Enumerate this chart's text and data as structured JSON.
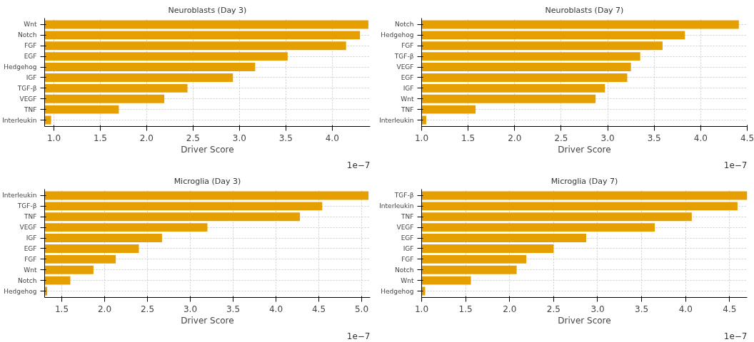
{
  "chart_data": [
    {
      "type": "bar",
      "orientation": "horizontal",
      "title": "Neuroblasts (Day 3)",
      "xlabel": "Driver Score",
      "annotations": [
        "1e−7"
      ],
      "grid": true,
      "color": "#e69f00",
      "categories": [
        "Wnt",
        "Notch",
        "FGF",
        "EGF",
        "Hedgehog",
        "IGF",
        "TGF-β",
        "VEGF",
        "TNF",
        "Interleukin"
      ],
      "values": [
        4.39,
        4.3,
        4.15,
        3.52,
        3.17,
        2.93,
        2.44,
        2.19,
        1.7,
        0.97
      ],
      "xlim": [
        0.9,
        4.41
      ],
      "xticks": [
        {
          "value": 1.0,
          "label": "1.0"
        },
        {
          "value": 1.5,
          "label": "1.5"
        },
        {
          "value": 2.0,
          "label": "2.0"
        },
        {
          "value": 2.5,
          "label": "2.5"
        },
        {
          "value": 3.0,
          "label": "3.0"
        },
        {
          "value": 3.5,
          "label": "3.5"
        },
        {
          "value": 4.0,
          "label": "4.0"
        }
      ]
    },
    {
      "type": "bar",
      "orientation": "horizontal",
      "title": "Neuroblasts (Day 7)",
      "xlabel": "Driver Score",
      "annotations": [
        "1e−7"
      ],
      "grid": true,
      "color": "#e69f00",
      "categories": [
        "Notch",
        "Hedgehog",
        "FGF",
        "TGF-β",
        "VEGF",
        "EGF",
        "IGF",
        "Wnt",
        "TNF",
        "Interleukin"
      ],
      "values": [
        4.41,
        3.83,
        3.59,
        3.35,
        3.25,
        3.21,
        2.97,
        2.87,
        1.58,
        1.05
      ],
      "xlim": [
        1.0,
        4.5
      ],
      "xticks": [
        {
          "value": 1.0,
          "label": "1.0"
        },
        {
          "value": 1.5,
          "label": "1.5"
        },
        {
          "value": 2.0,
          "label": "2.0"
        },
        {
          "value": 2.5,
          "label": "2.5"
        },
        {
          "value": 3.0,
          "label": "3.0"
        },
        {
          "value": 3.5,
          "label": "3.5"
        },
        {
          "value": 4.0,
          "label": "4.0"
        },
        {
          "value": 4.5,
          "label": "4.5"
        }
      ]
    },
    {
      "type": "bar",
      "orientation": "horizontal",
      "title": "Microglia (Day 3)",
      "xlabel": "Driver Score",
      "annotations": [
        "1e−7"
      ],
      "grid": true,
      "color": "#e69f00",
      "categories": [
        "Interleukin",
        "TGF-β",
        "TNF",
        "VEGF",
        "IGF",
        "EGF",
        "FGF",
        "Wnt",
        "Notch",
        "Hedgehog"
      ],
      "values": [
        5.08,
        4.54,
        4.28,
        3.2,
        2.67,
        2.4,
        2.13,
        1.87,
        1.6,
        1.33
      ],
      "xlim": [
        1.3,
        5.1
      ],
      "xticks": [
        {
          "value": 1.5,
          "label": "1.5"
        },
        {
          "value": 2.0,
          "label": "2.0"
        },
        {
          "value": 2.5,
          "label": "2.5"
        },
        {
          "value": 3.0,
          "label": "3.0"
        },
        {
          "value": 3.5,
          "label": "3.5"
        },
        {
          "value": 4.0,
          "label": "4.0"
        },
        {
          "value": 4.5,
          "label": "4.5"
        },
        {
          "value": 5.0,
          "label": "5.0"
        }
      ]
    },
    {
      "type": "bar",
      "orientation": "horizontal",
      "title": "Microglia (Day 7)",
      "xlabel": "Driver Score",
      "annotations": [
        "1e−7"
      ],
      "grid": true,
      "color": "#e69f00",
      "categories": [
        "TGF-β",
        "Interleukin",
        "TNF",
        "VEGF",
        "EGF",
        "IGF",
        "FGF",
        "Notch",
        "Wnt",
        "Hedgehog"
      ],
      "values": [
        4.7,
        4.59,
        4.07,
        3.65,
        2.87,
        2.5,
        2.19,
        2.08,
        1.56,
        1.04
      ],
      "xlim": [
        1.0,
        4.7
      ],
      "xticks": [
        {
          "value": 1.0,
          "label": "1.0"
        },
        {
          "value": 1.5,
          "label": "1.5"
        },
        {
          "value": 2.0,
          "label": "2.0"
        },
        {
          "value": 2.5,
          "label": "2.5"
        },
        {
          "value": 3.0,
          "label": "3.0"
        },
        {
          "value": 3.5,
          "label": "3.5"
        },
        {
          "value": 4.0,
          "label": "4.0"
        },
        {
          "value": 4.5,
          "label": "4.5"
        }
      ]
    }
  ]
}
